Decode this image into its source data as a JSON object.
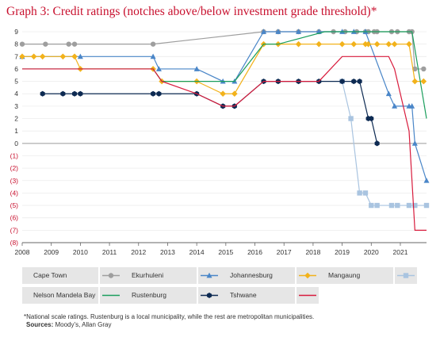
{
  "title": "Graph 3: Credit ratings (notches above/below investment grade threshold)*",
  "footnote": "*National scale ratings. Rustenburg is a local municipality, while the rest are metropolitan municipalities.",
  "sources_label": "Sources:",
  "sources_text": " Moody’s, Allan Gray",
  "chart_data": {
    "type": "line",
    "title": "Graph 3: Credit ratings (notches above/below investment grade threshold)*",
    "xlabel": "",
    "ylabel": "",
    "xlim": [
      2008,
      2021.9
    ],
    "ylim": [
      -8,
      9
    ],
    "x_ticks": [
      2008,
      2009,
      2010,
      2011,
      2012,
      2013,
      2014,
      2015,
      2016,
      2017,
      2018,
      2019,
      2020,
      2021
    ],
    "y_ticks": [
      -8,
      -7,
      -6,
      -5,
      -4,
      -3,
      -2,
      -1,
      0,
      1,
      2,
      3,
      4,
      5,
      6,
      7,
      8,
      9
    ],
    "y_tick_labels": [
      "(8)",
      "(7)",
      "(6)",
      "(5)",
      "(4)",
      "(3)",
      "(2)",
      "(1)",
      "0",
      "1",
      "2",
      "3",
      "4",
      "5",
      "6",
      "7",
      "8",
      "9"
    ],
    "grid": true,
    "legend_position": "bottom",
    "series": [
      {
        "name": "Cape Town",
        "color": "#9e9e9e",
        "marker": "circle",
        "x": [
          2008,
          2008.8,
          2009.6,
          2009.8,
          2012.5,
          2016.3,
          2016.8,
          2017.5,
          2018.2,
          2018.7,
          2019.1,
          2019.5,
          2019.8,
          2019.9,
          2020.1,
          2020.2,
          2020.7,
          2020.9,
          2021.3,
          2021.4,
          2021.5,
          2021.8
        ],
        "y": [
          8,
          8,
          8,
          8,
          8,
          9,
          9,
          9,
          9,
          9,
          9,
          9,
          9,
          9,
          9,
          9,
          9,
          9,
          9,
          9,
          6,
          6
        ]
      },
      {
        "name": "Ekurhuleni",
        "color": "#4a86c8",
        "marker": "triangle",
        "x": [
          2008,
          2010,
          2012.5,
          2012.7,
          2014,
          2014.9,
          2015.3,
          2016.3,
          2016.8,
          2017.5,
          2018.2,
          2019,
          2019.4,
          2019.8,
          2020.6,
          2020.8,
          2021.3,
          2021.4,
          2021.5,
          2021.9
        ],
        "y": [
          7,
          7,
          7,
          6,
          6,
          5,
          5,
          9,
          9,
          9,
          9,
          9,
          9,
          9,
          4,
          3,
          3,
          3,
          0,
          -3
        ]
      },
      {
        "name": "Johannesburg",
        "color": "#f2b21b",
        "marker": "diamond",
        "x": [
          2008,
          2008.4,
          2008.7,
          2009.4,
          2009.8,
          2010,
          2012.5,
          2012.8,
          2014,
          2014.9,
          2015.3,
          2016.3,
          2016.8,
          2017.5,
          2018.2,
          2019,
          2019.4,
          2019.8,
          2019.9,
          2020.2,
          2020.6,
          2020.8,
          2021.3,
          2021.5,
          2021.8
        ],
        "y": [
          7,
          7,
          7,
          7,
          7,
          6,
          6,
          5,
          5,
          4,
          4,
          8,
          8,
          8,
          8,
          8,
          8,
          8,
          8,
          8,
          8,
          8,
          8,
          5,
          5
        ]
      },
      {
        "name": "Mangaung",
        "color": "#a9c4e0",
        "marker": "square",
        "x": [
          2019,
          2019.3,
          2019.6,
          2019.8,
          2020,
          2020.2,
          2020.7,
          2020.9,
          2021.3,
          2021.5,
          2021.9
        ],
        "y": [
          5,
          2,
          -4,
          -4,
          -5,
          -5,
          -5,
          -5,
          -5,
          -5,
          -5
        ]
      },
      {
        "name": "Nelson Mandela Bay",
        "color": "#1a9e5c",
        "marker": "none",
        "x": [
          2008,
          2012.5,
          2012.8,
          2014.9,
          2015.3,
          2016.3,
          2016.8,
          2018.4,
          2020.9,
          2021.4,
          2021.9
        ],
        "y": [
          6,
          6,
          5,
          5,
          5,
          8,
          8,
          9,
          9,
          9,
          2
        ]
      },
      {
        "name": "Rustenburg",
        "color": "#0d2a52",
        "marker": "hexagon",
        "x": [
          2008.7,
          2009.4,
          2009.8,
          2010,
          2012.5,
          2012.7,
          2014,
          2014.9,
          2015.3,
          2016.3,
          2016.8,
          2017.5,
          2018.2,
          2019,
          2019.4,
          2019.6,
          2019.9,
          2020,
          2020.2
        ],
        "y": [
          4,
          4,
          4,
          4,
          4,
          4,
          4,
          3,
          3,
          5,
          5,
          5,
          5,
          5,
          5,
          5,
          2,
          2,
          0
        ]
      },
      {
        "name": "Tshwane",
        "color": "#d81b3c",
        "marker": "none",
        "x": [
          2008,
          2010,
          2012.5,
          2012.8,
          2014,
          2014.9,
          2015.3,
          2016.3,
          2018.2,
          2019,
          2020.6,
          2020.8,
          2021.3,
          2021.5,
          2021.9
        ],
        "y": [
          6,
          6,
          6,
          5,
          4,
          3,
          3,
          5,
          5,
          7,
          7,
          6,
          1,
          -7,
          -7
        ]
      }
    ]
  }
}
